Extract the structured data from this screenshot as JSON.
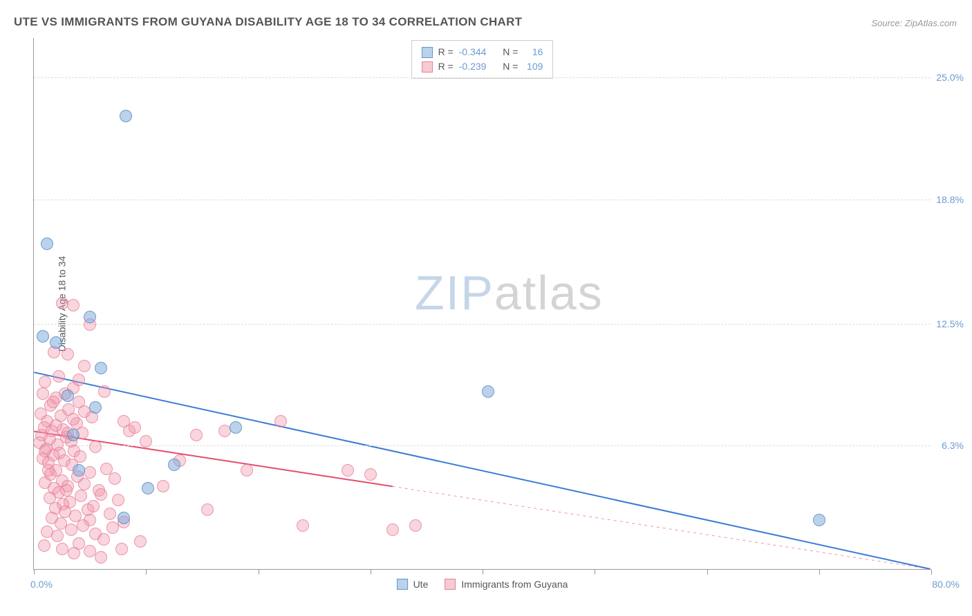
{
  "title": "UTE VS IMMIGRANTS FROM GUYANA DISABILITY AGE 18 TO 34 CORRELATION CHART",
  "source_label": "Source: ZipAtlas.com",
  "y_axis_label": "Disability Age 18 to 34",
  "watermark": {
    "zip": "ZIP",
    "atlas": "atlas"
  },
  "chart": {
    "type": "scatter",
    "background_color": "#ffffff",
    "grid_color": "#dddddd",
    "axis_color": "#999999",
    "xlim": [
      0,
      80
    ],
    "ylim": [
      0,
      27
    ],
    "x_ticks": [
      0,
      10,
      20,
      30,
      40,
      50,
      60,
      70,
      80
    ],
    "x_min_label": "0.0%",
    "x_max_label": "80.0%",
    "y_gridlines": [
      6.3,
      12.5,
      18.8,
      25.0
    ],
    "y_tick_labels": [
      "6.3%",
      "12.5%",
      "18.8%",
      "25.0%"
    ],
    "y_tick_color": "#6b9bd1",
    "marker_radius": 9,
    "series": [
      {
        "name": "Ute",
        "color_fill": "rgba(120,165,215,0.5)",
        "color_stroke": "rgba(90,140,200,0.8)",
        "r_value": "-0.344",
        "n_value": "16",
        "trend": {
          "x1": 0,
          "y1": 10.0,
          "x2": 80,
          "y2": 0.0,
          "color": "#3a7bd5",
          "width": 2,
          "dash_after_x": null
        },
        "points": [
          [
            1.2,
            16.5
          ],
          [
            8.2,
            23.0
          ],
          [
            0.8,
            11.8
          ],
          [
            5.0,
            12.8
          ],
          [
            2.0,
            11.5
          ],
          [
            3.0,
            8.8
          ],
          [
            40.5,
            9.0
          ],
          [
            18.0,
            7.2
          ],
          [
            12.5,
            5.3
          ],
          [
            10.2,
            4.1
          ],
          [
            8.0,
            2.6
          ],
          [
            70.0,
            2.5
          ],
          [
            5.5,
            8.2
          ],
          [
            3.5,
            6.8
          ],
          [
            6.0,
            10.2
          ],
          [
            4.0,
            5.0
          ]
        ]
      },
      {
        "name": "Immigrants from Guyana",
        "color_fill": "rgba(240,150,170,0.4)",
        "color_stroke": "rgba(230,120,150,0.7)",
        "r_value": "-0.239",
        "n_value": "109",
        "trend": {
          "x1": 0,
          "y1": 7.0,
          "x2": 80,
          "y2": 0.0,
          "color": "#e54b6d",
          "width": 2,
          "dash_after_x": 32
        },
        "points": [
          [
            2.5,
            13.5
          ],
          [
            3.5,
            13.4
          ],
          [
            5.0,
            12.4
          ],
          [
            1.8,
            11.0
          ],
          [
            3.0,
            10.9
          ],
          [
            4.5,
            10.3
          ],
          [
            2.2,
            9.8
          ],
          [
            1.0,
            9.5
          ],
          [
            3.5,
            9.2
          ],
          [
            0.8,
            8.9
          ],
          [
            2.0,
            8.7
          ],
          [
            4.0,
            8.5
          ],
          [
            1.5,
            8.3
          ],
          [
            3.1,
            8.1
          ],
          [
            0.6,
            7.9
          ],
          [
            2.4,
            7.8
          ],
          [
            5.2,
            7.7
          ],
          [
            1.2,
            7.5
          ],
          [
            3.8,
            7.4
          ],
          [
            0.9,
            7.2
          ],
          [
            2.6,
            7.1
          ],
          [
            1.6,
            7.0
          ],
          [
            4.3,
            6.9
          ],
          [
            0.7,
            6.8
          ],
          [
            2.9,
            6.7
          ],
          [
            1.4,
            6.6
          ],
          [
            3.3,
            6.5
          ],
          [
            0.5,
            6.4
          ],
          [
            2.1,
            6.3
          ],
          [
            5.5,
            6.2
          ],
          [
            1.1,
            6.1
          ],
          [
            3.6,
            6.0
          ],
          [
            8.0,
            7.5
          ],
          [
            2.3,
            5.9
          ],
          [
            1.7,
            5.8
          ],
          [
            4.1,
            5.7
          ],
          [
            0.8,
            5.6
          ],
          [
            2.7,
            5.5
          ],
          [
            1.3,
            5.4
          ],
          [
            3.4,
            5.3
          ],
          [
            6.5,
            5.1
          ],
          [
            2.0,
            5.0
          ],
          [
            5.0,
            4.9
          ],
          [
            1.5,
            4.8
          ],
          [
            3.9,
            4.7
          ],
          [
            7.2,
            4.6
          ],
          [
            2.5,
            4.5
          ],
          [
            1.0,
            4.4
          ],
          [
            4.5,
            4.3
          ],
          [
            8.5,
            7.0
          ],
          [
            3.0,
            4.2
          ],
          [
            1.8,
            4.1
          ],
          [
            5.8,
            4.0
          ],
          [
            2.2,
            3.9
          ],
          [
            6.0,
            3.8
          ],
          [
            4.2,
            3.7
          ],
          [
            1.4,
            3.6
          ],
          [
            7.5,
            3.5
          ],
          [
            3.2,
            3.4
          ],
          [
            2.6,
            3.3
          ],
          [
            5.3,
            3.2
          ],
          [
            1.9,
            3.1
          ],
          [
            9.0,
            7.2
          ],
          [
            4.8,
            3.0
          ],
          [
            2.8,
            2.9
          ],
          [
            6.8,
            2.8
          ],
          [
            3.7,
            2.7
          ],
          [
            1.6,
            2.6
          ],
          [
            5.0,
            2.5
          ],
          [
            8.0,
            2.4
          ],
          [
            2.4,
            2.3
          ],
          [
            4.4,
            2.2
          ],
          [
            7.0,
            2.1
          ],
          [
            3.3,
            2.0
          ],
          [
            10.0,
            6.5
          ],
          [
            1.2,
            1.9
          ],
          [
            14.5,
            6.8
          ],
          [
            5.5,
            1.8
          ],
          [
            2.1,
            1.7
          ],
          [
            6.2,
            1.5
          ],
          [
            9.5,
            1.4
          ],
          [
            4.0,
            1.3
          ],
          [
            2.9,
            4.0
          ],
          [
            7.8,
            1.0
          ],
          [
            3.6,
            0.8
          ],
          [
            5.0,
            0.9
          ],
          [
            11.5,
            4.2
          ],
          [
            13.0,
            5.5
          ],
          [
            15.5,
            3.0
          ],
          [
            17.0,
            7.0
          ],
          [
            19.0,
            5.0
          ],
          [
            22.0,
            7.5
          ],
          [
            24.0,
            2.2
          ],
          [
            28.0,
            5.0
          ],
          [
            30.0,
            4.8
          ],
          [
            32.0,
            2.0
          ],
          [
            34.0,
            2.2
          ],
          [
            6.0,
            0.6
          ],
          [
            4.5,
            8.0
          ],
          [
            6.3,
            9.0
          ],
          [
            1.0,
            6.0
          ],
          [
            2.0,
            7.3
          ],
          [
            3.5,
            7.6
          ],
          [
            1.7,
            8.5
          ],
          [
            2.8,
            8.9
          ],
          [
            4.0,
            9.6
          ],
          [
            0.9,
            1.2
          ],
          [
            2.5,
            1.0
          ],
          [
            3.0,
            6.9
          ],
          [
            1.3,
            5.0
          ]
        ]
      }
    ]
  },
  "legend_top": {
    "r_label": "R =",
    "n_label": "N ="
  },
  "legend_bottom": {
    "blue_label": "Ute",
    "pink_label": "Immigrants from Guyana"
  }
}
